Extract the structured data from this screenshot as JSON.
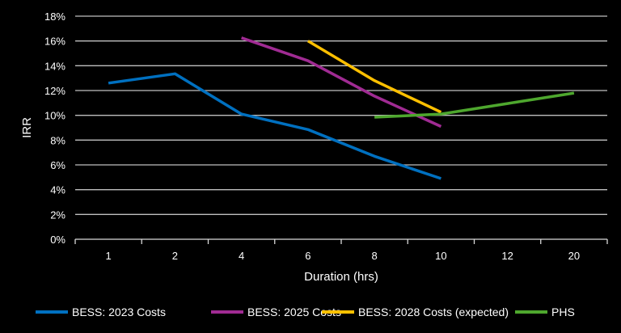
{
  "chart_data": {
    "type": "line",
    "title": "",
    "xlabel": "Duration (hrs)",
    "ylabel": "IRR",
    "categories": [
      "1",
      "2",
      "4",
      "6",
      "8",
      "10",
      "12",
      "20"
    ],
    "ylim": [
      0,
      18
    ],
    "yticks": [
      "0%",
      "2%",
      "4%",
      "6%",
      "8%",
      "10%",
      "12%",
      "14%",
      "16%",
      "18%"
    ],
    "ytick_values": [
      0,
      2,
      4,
      6,
      8,
      10,
      12,
      14,
      16,
      18
    ],
    "grid": true,
    "legend_position": "bottom",
    "series": [
      {
        "name": "BESS: 2023 Costs",
        "color": "#0070C0",
        "values": [
          12.6,
          13.35,
          10.1,
          8.85,
          6.7,
          4.9,
          null,
          null
        ]
      },
      {
        "name": "BESS: 2025 Costs",
        "color": "#A02B93",
        "values": [
          null,
          null,
          16.25,
          14.4,
          11.55,
          9.1,
          null,
          null
        ]
      },
      {
        "name": "BESS: 2028 Costs (expected)",
        "color": "#FFC000",
        "values": [
          null,
          null,
          null,
          16.0,
          12.8,
          10.25,
          null,
          null
        ]
      },
      {
        "name": "PHS",
        "color": "#4EA72E",
        "values": [
          null,
          null,
          null,
          null,
          9.85,
          10.1,
          10.95,
          11.8
        ]
      }
    ]
  }
}
